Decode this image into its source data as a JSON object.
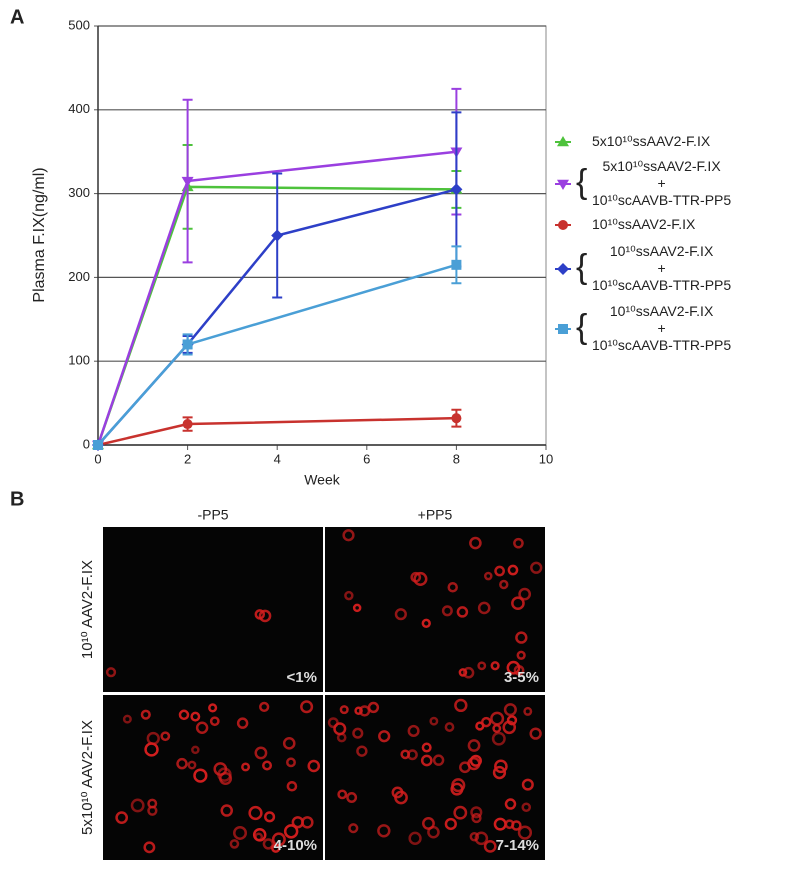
{
  "panel_labels": [
    "A",
    "B"
  ],
  "chart_data": {
    "type": "line",
    "ylabel": "Plasma F.IX(ng/ml)",
    "xlabel": "Week",
    "xlim": [
      0,
      10
    ],
    "xticks": [
      0,
      2,
      4,
      6,
      8,
      10
    ],
    "ylim": [
      0,
      500
    ],
    "yticks": [
      0,
      100,
      200,
      300,
      400,
      500
    ],
    "grid": true,
    "series": [
      {
        "name": "5x10¹⁰ssAAV2-F.IX",
        "color": "#4ec23c",
        "marker": "triangle-up",
        "x": [
          0,
          2,
          8
        ],
        "values": [
          0,
          308,
          305
        ],
        "errors": [
          null,
          50,
          22
        ]
      },
      {
        "name": "5x10¹⁰ssAAV2-F.IX\n+\n10¹⁰scAAVB-TTR-PP5",
        "color": "#9a3fe0",
        "marker": "triangle-down",
        "x": [
          0,
          2,
          8
        ],
        "values": [
          0,
          315,
          350
        ],
        "errors": [
          null,
          97,
          75
        ]
      },
      {
        "name": "10¹⁰ssAAV2-F.IX",
        "color": "#c8322e",
        "marker": "circle",
        "x": [
          0,
          2,
          8
        ],
        "values": [
          0,
          25,
          32
        ],
        "errors": [
          null,
          8,
          10
        ]
      },
      {
        "name": "10¹⁰ssAAV2-F.IX\n+\n10¹⁰scAAVB-TTR-PP5",
        "color": "#2d3fc7",
        "marker": "diamond",
        "x": [
          0,
          2,
          4,
          8
        ],
        "values": [
          0,
          120,
          250,
          305
        ],
        "errors": [
          null,
          10,
          74,
          92
        ]
      },
      {
        "name": "10¹⁰ssAAV2-F.IX\n+\n10¹⁰scAAVB-TTR-PP5",
        "color": "#4a9fd6",
        "marker": "square",
        "x": [
          0,
          2,
          8
        ],
        "values": [
          0,
          120,
          215
        ],
        "errors": [
          null,
          12,
          22
        ]
      }
    ]
  },
  "panel_b": {
    "columns": [
      "-PP5",
      "+PP5"
    ],
    "rows": [
      "10¹⁰ AAV2-F.IX",
      "5x10¹⁰ AAV2-F.IX"
    ],
    "cells": [
      [
        "<1%",
        "3-5%"
      ],
      [
        "4-10%",
        "7-14%"
      ]
    ]
  }
}
